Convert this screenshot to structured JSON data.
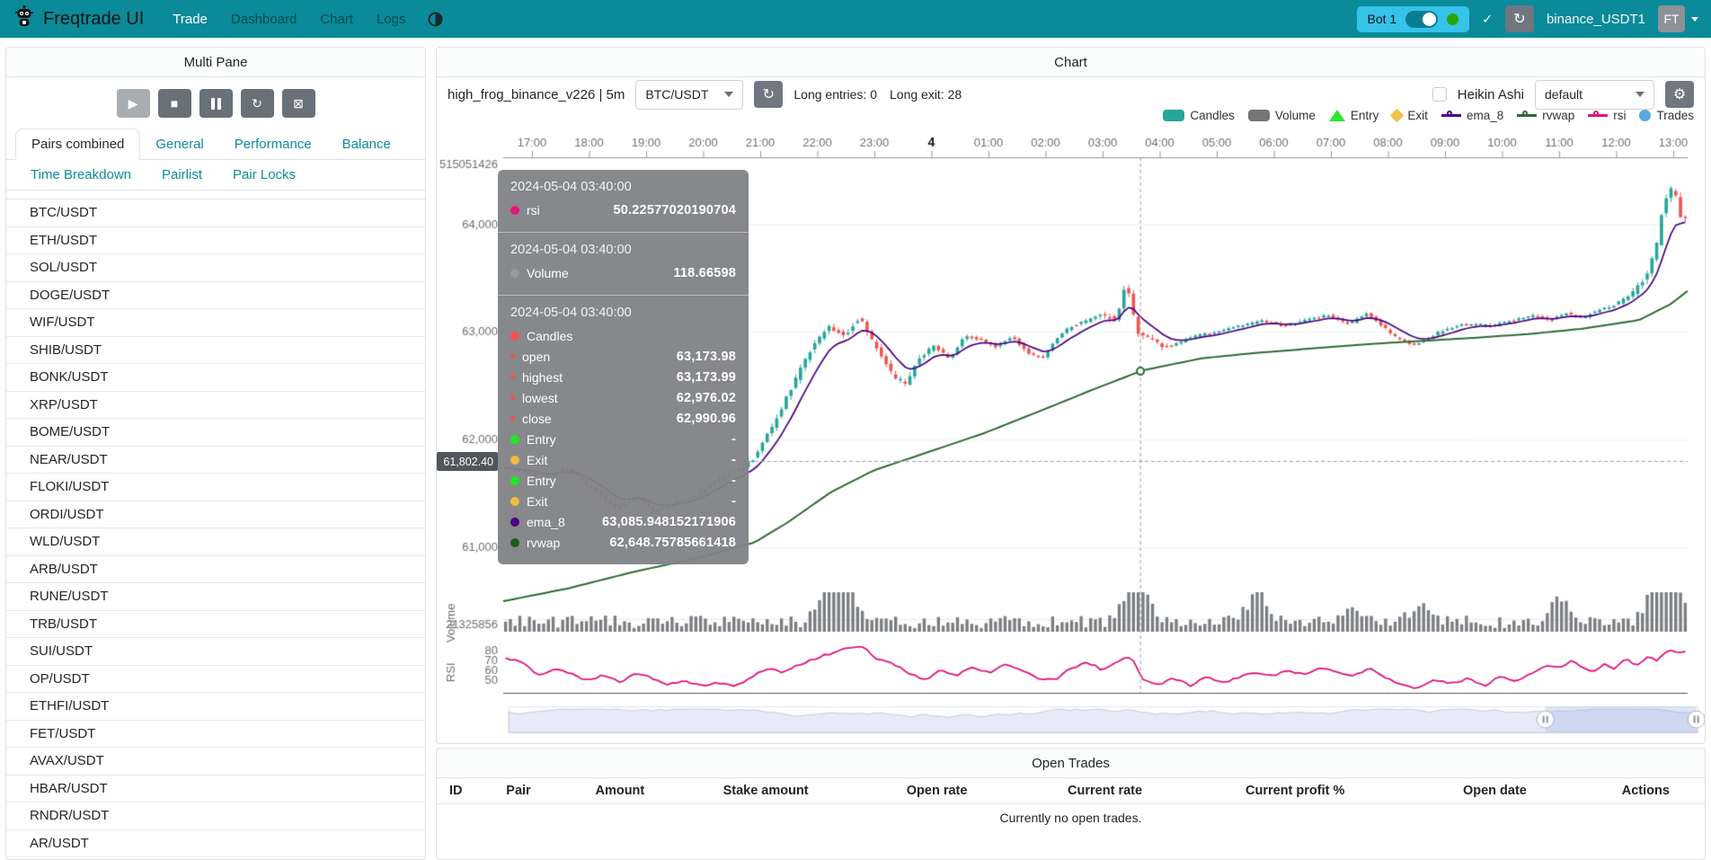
{
  "navbar": {
    "brand": "Freqtrade UI",
    "items": [
      {
        "label": "Trade",
        "active": true
      },
      {
        "label": "Dashboard",
        "active": false
      },
      {
        "label": "Chart",
        "active": false
      },
      {
        "label": "Logs",
        "active": false
      }
    ],
    "bot": {
      "name": "Bot 1",
      "toggle_on": true
    },
    "check_glyph": "✓",
    "reload_glyph": "↻",
    "exchange_label": "binance_USDT1",
    "avatar_text": "FT"
  },
  "sidebar": {
    "title": "Multi Pane",
    "controls": [
      "play",
      "stop",
      "pause",
      "reload",
      "forced-exit"
    ],
    "tabs": [
      [
        "Pairs combined",
        "General",
        "Performance",
        "Balance"
      ],
      [
        "Time Breakdown",
        "Pairlist",
        "Pair Locks"
      ]
    ],
    "active_tab": "Pairs combined",
    "pairs": [
      "BTC/USDT",
      "ETH/USDT",
      "SOL/USDT",
      "DOGE/USDT",
      "WIF/USDT",
      "SHIB/USDT",
      "BONK/USDT",
      "XRP/USDT",
      "BOME/USDT",
      "NEAR/USDT",
      "FLOKI/USDT",
      "ORDI/USDT",
      "WLD/USDT",
      "ARB/USDT",
      "RUNE/USDT",
      "TRB/USDT",
      "SUI/USDT",
      "OP/USDT",
      "ETHFI/USDT",
      "FET/USDT",
      "AVAX/USDT",
      "HBAR/USDT",
      "RNDR/USDT",
      "AR/USDT"
    ]
  },
  "chart": {
    "panel_title": "Chart",
    "strategy_label": "high_frog_binance_v226 | 5m",
    "pair_selected": "BTC/USDT",
    "long_entries": "Long entries: 0",
    "long_exit": "Long exit: 28",
    "heikin_ashi_label": "Heikin Ashi",
    "plot_config_selected": "default",
    "gear_glyph": "⚙",
    "legend": [
      {
        "label": "Candles",
        "shape": "roundrect",
        "color": "#26a69a"
      },
      {
        "label": "Volume",
        "shape": "roundrect",
        "color": "#757575"
      },
      {
        "label": "Entry",
        "shape": "triangle",
        "color": "#2ee62b"
      },
      {
        "label": "Exit",
        "shape": "diamond",
        "color": "#efc24a"
      },
      {
        "label": "ema_8",
        "shape": "line",
        "color": "#4b0082"
      },
      {
        "label": "rvwap",
        "shape": "line",
        "color": "#2e6b31"
      },
      {
        "label": "rsi",
        "shape": "line",
        "color": "#e1127e"
      },
      {
        "label": "Trades",
        "shape": "circle",
        "color": "#58a9e0"
      }
    ],
    "price_tag": "61,802.40",
    "tooltip": {
      "sections": [
        {
          "time": "2024-05-04 03:40:00",
          "rows": [
            {
              "label": "rsi",
              "value": "50.22577020190704",
              "dot": "#e0187f",
              "size": 10
            }
          ]
        },
        {
          "time": "2024-05-04 03:40:00",
          "rows": [
            {
              "label": "Volume",
              "value": "118.66598",
              "dot": "#97999c",
              "size": 10
            }
          ]
        },
        {
          "time": "2024-05-04 03:40:00",
          "rows": [
            {
              "label": "Candles",
              "value": "",
              "dot": "#ef5350",
              "size": 10
            },
            {
              "label": "open",
              "value": "63,173.98",
              "dot": "#ef5350",
              "size": 5
            },
            {
              "label": "highest",
              "value": "63,173.99",
              "dot": "#ef5350",
              "size": 5
            },
            {
              "label": "lowest",
              "value": "62,976.02",
              "dot": "#ef5350",
              "size": 5
            },
            {
              "label": "close",
              "value": "62,990.96",
              "dot": "#ef5350",
              "size": 5
            },
            {
              "label": "Entry",
              "value": "-",
              "dot": "#23e626",
              "size": 10
            },
            {
              "label": "Exit",
              "value": "-",
              "dot": "#eebd3f",
              "size": 10
            },
            {
              "label": "Entry",
              "value": "-",
              "dot": "#23e626",
              "size": 10
            },
            {
              "label": "Exit",
              "value": "-",
              "dot": "#eebd3f",
              "size": 10
            },
            {
              "label": "ema_8",
              "value": "63,085.948152171906",
              "dot": "#4b0082",
              "size": 10
            },
            {
              "label": "rvwap",
              "value": "62,648.75785661418",
              "dot": "#1e5b20",
              "size": 10
            }
          ]
        }
      ]
    }
  },
  "chart_data": {
    "type": "candlestick+volume+rsi",
    "x_labels": [
      "17:00",
      "18:00",
      "19:00",
      "20:00",
      "21:00",
      "22:00",
      "23:00",
      "4",
      "01:00",
      "02:00",
      "03:00",
      "04:00",
      "05:00",
      "06:00",
      "07:00",
      "08:00",
      "09:00",
      "10:00",
      "11:00",
      "12:00",
      "13:00"
    ],
    "x_bold_index": 7,
    "y_labels": [
      [
        "64,000",
        64000
      ],
      [
        "63,000",
        63000
      ],
      [
        "62,000",
        62000
      ],
      [
        "61,000",
        61000
      ]
    ],
    "y_axis_top_label": "515051426",
    "volume_axis_label": "21325856",
    "volume_axis_name": "Volume",
    "rsi_axis_name": "RSI",
    "rsi_ticks": [
      80,
      70,
      60,
      50
    ],
    "candle_count": 249,
    "crosshair": {
      "x_frac": 0.538,
      "price": 61802.4
    },
    "colors": {
      "up": "#26a69a",
      "down": "#ef5350",
      "ema": "#4b0082",
      "rvwap": "#2e6b31",
      "rsi": "#e1127e",
      "volume": "#7b7f83",
      "axis_text": "#6b7075"
    },
    "price_keyframes": [
      [
        0,
        61760
      ],
      [
        0.037,
        61660
      ],
      [
        0.055,
        61740
      ],
      [
        0.078,
        61540
      ],
      [
        0.097,
        61360
      ],
      [
        0.115,
        61490
      ],
      [
        0.129,
        61340
      ],
      [
        0.166,
        61490
      ],
      [
        0.184,
        61640
      ],
      [
        0.203,
        61740
      ],
      [
        0.212,
        61800
      ],
      [
        0.226,
        62050
      ],
      [
        0.24,
        62350
      ],
      [
        0.258,
        62760
      ],
      [
        0.277,
        63060
      ],
      [
        0.29,
        62960
      ],
      [
        0.304,
        63140
      ],
      [
        0.318,
        62860
      ],
      [
        0.332,
        62600
      ],
      [
        0.343,
        62530
      ],
      [
        0.355,
        62760
      ],
      [
        0.367,
        62880
      ],
      [
        0.38,
        62760
      ],
      [
        0.393,
        62960
      ],
      [
        0.406,
        62940
      ],
      [
        0.419,
        62860
      ],
      [
        0.433,
        62960
      ],
      [
        0.447,
        62810
      ],
      [
        0.459,
        62760
      ],
      [
        0.472,
        62960
      ],
      [
        0.484,
        63060
      ],
      [
        0.498,
        63110
      ],
      [
        0.509,
        63180
      ],
      [
        0.521,
        63110
      ],
      [
        0.53,
        63460
      ],
      [
        0.536,
        63160
      ],
      [
        0.54,
        63010
      ],
      [
        0.553,
        62910
      ],
      [
        0.567,
        62860
      ],
      [
        0.581,
        62940
      ],
      [
        0.594,
        62980
      ],
      [
        0.608,
        63010
      ],
      [
        0.627,
        63060
      ],
      [
        0.645,
        63110
      ],
      [
        0.664,
        63060
      ],
      [
        0.682,
        63110
      ],
      [
        0.7,
        63160
      ],
      [
        0.719,
        63080
      ],
      [
        0.733,
        63180
      ],
      [
        0.747,
        63060
      ],
      [
        0.76,
        62940
      ],
      [
        0.774,
        62880
      ],
      [
        0.788,
        62960
      ],
      [
        0.802,
        63040
      ],
      [
        0.82,
        63080
      ],
      [
        0.839,
        63060
      ],
      [
        0.857,
        63110
      ],
      [
        0.876,
        63160
      ],
      [
        0.889,
        63110
      ],
      [
        0.903,
        63180
      ],
      [
        0.917,
        63140
      ],
      [
        0.931,
        63210
      ],
      [
        0.945,
        63260
      ],
      [
        0.959,
        63360
      ],
      [
        0.97,
        63515
      ],
      [
        0.979,
        63770
      ],
      [
        0.986,
        64225
      ],
      [
        0.994,
        64375
      ],
      [
        1,
        64070
      ]
    ],
    "rvwap_keyframes": [
      [
        0,
        60505
      ],
      [
        0.055,
        60625
      ],
      [
        0.111,
        60780
      ],
      [
        0.166,
        60910
      ],
      [
        0.212,
        61050
      ],
      [
        0.24,
        61235
      ],
      [
        0.277,
        61520
      ],
      [
        0.313,
        61720
      ],
      [
        0.359,
        61890
      ],
      [
        0.406,
        62065
      ],
      [
        0.452,
        62265
      ],
      [
        0.498,
        62470
      ],
      [
        0.54,
        62648
      ],
      [
        0.59,
        62760
      ],
      [
        0.636,
        62810
      ],
      [
        0.682,
        62850
      ],
      [
        0.728,
        62890
      ],
      [
        0.774,
        62920
      ],
      [
        0.82,
        62950
      ],
      [
        0.866,
        62985
      ],
      [
        0.912,
        63035
      ],
      [
        0.959,
        63115
      ],
      [
        0.986,
        63265
      ],
      [
        1,
        63385
      ]
    ],
    "rsi_keyframes": [
      [
        0.002,
        72
      ],
      [
        0.014,
        68
      ],
      [
        0.028,
        55
      ],
      [
        0.041,
        62
      ],
      [
        0.055,
        57
      ],
      [
        0.069,
        50
      ],
      [
        0.083,
        55
      ],
      [
        0.097,
        48
      ],
      [
        0.111,
        58
      ],
      [
        0.124,
        52
      ],
      [
        0.138,
        46
      ],
      [
        0.152,
        50
      ],
      [
        0.166,
        44
      ],
      [
        0.18,
        48
      ],
      [
        0.194,
        43
      ],
      [
        0.207,
        52
      ],
      [
        0.221,
        62
      ],
      [
        0.235,
        58
      ],
      [
        0.249,
        66
      ],
      [
        0.263,
        72
      ],
      [
        0.277,
        78
      ],
      [
        0.29,
        82
      ],
      [
        0.304,
        84
      ],
      [
        0.313,
        72
      ],
      [
        0.327,
        68
      ],
      [
        0.341,
        58
      ],
      [
        0.355,
        50
      ],
      [
        0.369,
        60
      ],
      [
        0.382,
        55
      ],
      [
        0.396,
        63
      ],
      [
        0.41,
        58
      ],
      [
        0.424,
        66
      ],
      [
        0.438,
        60
      ],
      [
        0.452,
        52
      ],
      [
        0.465,
        50
      ],
      [
        0.479,
        62
      ],
      [
        0.493,
        68
      ],
      [
        0.507,
        60
      ],
      [
        0.521,
        70
      ],
      [
        0.53,
        74
      ],
      [
        0.54,
        50.2
      ],
      [
        0.553,
        46
      ],
      [
        0.567,
        52
      ],
      [
        0.581,
        44
      ],
      [
        0.594,
        54
      ],
      [
        0.608,
        48
      ],
      [
        0.622,
        53
      ],
      [
        0.636,
        58
      ],
      [
        0.65,
        54
      ],
      [
        0.664,
        60
      ],
      [
        0.677,
        56
      ],
      [
        0.691,
        63
      ],
      [
        0.705,
        58
      ],
      [
        0.719,
        54
      ],
      [
        0.733,
        62
      ],
      [
        0.747,
        52
      ],
      [
        0.76,
        45
      ],
      [
        0.774,
        42
      ],
      [
        0.788,
        50
      ],
      [
        0.802,
        47
      ],
      [
        0.816,
        52
      ],
      [
        0.829,
        44
      ],
      [
        0.843,
        54
      ],
      [
        0.857,
        49
      ],
      [
        0.871,
        58
      ],
      [
        0.885,
        66
      ],
      [
        0.894,
        62
      ],
      [
        0.903,
        70
      ],
      [
        0.912,
        64
      ],
      [
        0.922,
        58
      ],
      [
        0.931,
        66
      ],
      [
        0.94,
        62
      ],
      [
        0.949,
        72
      ],
      [
        0.959,
        65
      ],
      [
        0.968,
        74
      ],
      [
        0.977,
        70
      ],
      [
        0.986,
        82
      ],
      [
        0.995,
        78
      ]
    ],
    "volume_spikes": [
      [
        0.27,
        0.5
      ],
      [
        0.282,
        1.0
      ],
      [
        0.292,
        0.7
      ],
      [
        0.53,
        1.0
      ],
      [
        0.542,
        0.55
      ],
      [
        0.638,
        0.9
      ],
      [
        0.72,
        0.4
      ],
      [
        0.775,
        0.5
      ],
      [
        0.895,
        0.65
      ],
      [
        0.972,
        0.6
      ],
      [
        0.982,
        0.85
      ],
      [
        0.992,
        0.9
      ]
    ],
    "datazoom": {
      "window_start_frac": 0.872,
      "window_end_frac": 0.999
    }
  },
  "open_trades": {
    "title": "Open Trades",
    "columns": [
      "ID",
      "Pair",
      "Amount",
      "Stake amount",
      "Open rate",
      "Current rate",
      "Current profit %",
      "Open date",
      "Actions"
    ],
    "empty_text": "Currently no open trades."
  }
}
